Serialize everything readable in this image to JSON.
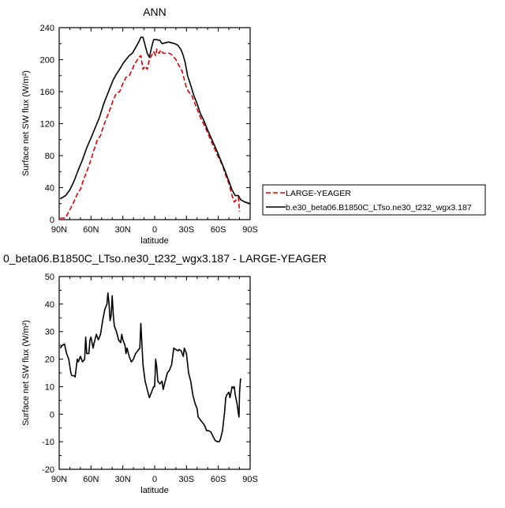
{
  "chart_data": [
    {
      "type": "line",
      "title": "ANN",
      "xlabel": "latitude",
      "ylabel": "Surface net SW flux (W/m²)",
      "xlim": [
        90,
        -90
      ],
      "ylim": [
        0,
        240
      ],
      "x_ticks": [
        90,
        60,
        30,
        0,
        -30,
        -60,
        -90
      ],
      "x_tick_labels": [
        "90N",
        "60N",
        "30N",
        "0",
        "30S",
        "60S",
        "90S"
      ],
      "y_ticks": [
        0,
        40,
        80,
        120,
        160,
        200,
        240
      ],
      "y_tick_labels": [
        "0",
        "40",
        "80",
        "120",
        "160",
        "200",
        "240"
      ],
      "grid": false,
      "legend_position": "outside-right",
      "series": [
        {
          "name": "LARGE-YEAGER",
          "color": "#e00000",
          "dash": "dashed",
          "points": [
            [
              89,
              2
            ],
            [
              84,
              2
            ],
            [
              81,
              10
            ],
            [
              77,
              20
            ],
            [
              73,
              32
            ],
            [
              70,
              38
            ],
            [
              67,
              50
            ],
            [
              64,
              60
            ],
            [
              60,
              75
            ],
            [
              57,
              88
            ],
            [
              54,
              100
            ],
            [
              51,
              105
            ],
            [
              48,
              118
            ],
            [
              45,
              128
            ],
            [
              42,
              138
            ],
            [
              39,
              150
            ],
            [
              36,
              158
            ],
            [
              33,
              160
            ],
            [
              30,
              170
            ],
            [
              27,
              178
            ],
            [
              24,
              180
            ],
            [
              21,
              188
            ],
            [
              19,
              195
            ],
            [
              17,
              198
            ],
            [
              15,
              203
            ],
            [
              13,
              205
            ],
            [
              11,
              188
            ],
            [
              9,
              192
            ],
            [
              7,
              188
            ],
            [
              5,
              200
            ],
            [
              3,
              205
            ],
            [
              1,
              210
            ],
            [
              -1,
              205
            ],
            [
              -2,
              213
            ],
            [
              -4,
              208
            ],
            [
              -6,
              212
            ],
            [
              -8,
              208
            ],
            [
              -11,
              208
            ],
            [
              -14,
              208
            ],
            [
              -17,
              205
            ],
            [
              -20,
              200
            ],
            [
              -22,
              195
            ],
            [
              -24,
              190
            ],
            [
              -26,
              185
            ],
            [
              -28,
              175
            ],
            [
              -30,
              165
            ],
            [
              -32,
              160
            ],
            [
              -35,
              155
            ],
            [
              -38,
              145
            ],
            [
              -41,
              135
            ],
            [
              -44,
              125
            ],
            [
              -48,
              115
            ],
            [
              -52,
              102
            ],
            [
              -56,
              90
            ],
            [
              -60,
              78
            ],
            [
              -64,
              68
            ],
            [
              -67,
              55
            ],
            [
              -70,
              45
            ],
            [
              -73,
              30
            ],
            [
              -75,
              22
            ],
            [
              -77,
              25
            ],
            [
              -79,
              28
            ],
            [
              -80,
              10
            ]
          ]
        },
        {
          "name": "b.e30_beta06.B1850C_LTso.ne30_t232_wgx3.187",
          "color": "#000000",
          "dash": "solid",
          "points": [
            [
              89,
              26
            ],
            [
              84,
              30
            ],
            [
              80,
              37
            ],
            [
              76,
              48
            ],
            [
              72,
              62
            ],
            [
              68,
              75
            ],
            [
              64,
              90
            ],
            [
              60,
              102
            ],
            [
              56,
              115
            ],
            [
              52,
              128
            ],
            [
              48,
              145
            ],
            [
              45,
              155
            ],
            [
              42,
              165
            ],
            [
              39,
              175
            ],
            [
              36,
              182
            ],
            [
              33,
              188
            ],
            [
              30,
              195
            ],
            [
              27,
              200
            ],
            [
              24,
              205
            ],
            [
              21,
              208
            ],
            [
              18,
              215
            ],
            [
              15,
              222
            ],
            [
              13,
              228
            ],
            [
              11,
              228
            ],
            [
              9,
              218
            ],
            [
              7,
              208
            ],
            [
              5,
              203
            ],
            [
              3,
              215
            ],
            [
              1,
              225
            ],
            [
              -2,
              225
            ],
            [
              -5,
              224
            ],
            [
              -7,
              220
            ],
            [
              -10,
              221
            ],
            [
              -13,
              222
            ],
            [
              -16,
              221
            ],
            [
              -19,
              220
            ],
            [
              -22,
              218
            ],
            [
              -25,
              212
            ],
            [
              -27,
              205
            ],
            [
              -29,
              195
            ],
            [
              -31,
              180
            ],
            [
              -34,
              168
            ],
            [
              -37,
              155
            ],
            [
              -40,
              145
            ],
            [
              -43,
              133
            ],
            [
              -46,
              125
            ],
            [
              -50,
              112
            ],
            [
              -54,
              100
            ],
            [
              -58,
              88
            ],
            [
              -62,
              75
            ],
            [
              -66,
              62
            ],
            [
              -70,
              48
            ],
            [
              -73,
              37
            ],
            [
              -76,
              30
            ],
            [
              -79,
              30
            ],
            [
              -81,
              25
            ],
            [
              -85,
              22
            ],
            [
              -90,
              20
            ]
          ]
        }
      ]
    },
    {
      "type": "line",
      "title": "0_beta06.B1850C_LTso.ne30_t232_wgx3.187 - LARGE-YEAGER",
      "xlabel": "latitude",
      "ylabel": "Surface net SW flux (W/m²)",
      "xlim": [
        90,
        -90
      ],
      "ylim": [
        -20,
        50
      ],
      "x_ticks": [
        90,
        60,
        30,
        0,
        -30,
        -60,
        -90
      ],
      "x_tick_labels": [
        "90N",
        "60N",
        "30N",
        "0",
        "30S",
        "60S",
        "90S"
      ],
      "y_ticks": [
        -20,
        -10,
        0,
        10,
        20,
        30,
        40,
        50
      ],
      "y_tick_labels": [
        "-20",
        "-10",
        "0",
        "10",
        "20",
        "30",
        "40",
        "50"
      ],
      "grid": false,
      "series": [
        {
          "color": "#000000",
          "dash": "solid",
          "points": [
            [
              89,
              24
            ],
            [
              87,
              25
            ],
            [
              85,
              25.5
            ],
            [
              83,
              22
            ],
            [
              81,
              20
            ],
            [
              79,
              15
            ],
            [
              78,
              14
            ],
            [
              76,
              14
            ],
            [
              75,
              13.5
            ],
            [
              73,
              20
            ],
            [
              72,
              19
            ],
            [
              70,
              21
            ],
            [
              68,
              19
            ],
            [
              66,
              20
            ],
            [
              65,
              28
            ],
            [
              64,
              22
            ],
            [
              62,
              22
            ],
            [
              61,
              27
            ],
            [
              60,
              28
            ],
            [
              58,
              24
            ],
            [
              57,
              26
            ],
            [
              55,
              29
            ],
            [
              53,
              27
            ],
            [
              51,
              29
            ],
            [
              49,
              34
            ],
            [
              47,
              38
            ],
            [
              45,
              40
            ],
            [
              44,
              44
            ],
            [
              43,
              40
            ],
            [
              42,
              34
            ],
            [
              41,
              36
            ],
            [
              40,
              43
            ],
            [
              39,
              36
            ],
            [
              38,
              32
            ],
            [
              36,
              30
            ],
            [
              34,
              27
            ],
            [
              32,
              26
            ],
            [
              31,
              29
            ],
            [
              30,
              27
            ],
            [
              28,
              25
            ],
            [
              27,
              22
            ],
            [
              26,
              24
            ],
            [
              24,
              21
            ],
            [
              22,
              19
            ],
            [
              20,
              20
            ],
            [
              18,
              22
            ],
            [
              16,
              23
            ],
            [
              14,
              24
            ],
            [
              13,
              33
            ],
            [
              11,
              18
            ],
            [
              9,
              12
            ],
            [
              7,
              9
            ],
            [
              5,
              6
            ],
            [
              3,
              8
            ],
            [
              1,
              10
            ],
            [
              0,
              10
            ],
            [
              -1,
              20
            ],
            [
              -2,
              17
            ],
            [
              -3,
              12
            ],
            [
              -5,
              11
            ],
            [
              -7,
              12
            ],
            [
              -8,
              9
            ],
            [
              -10,
              12
            ],
            [
              -12,
              15
            ],
            [
              -14,
              16
            ],
            [
              -16,
              18
            ],
            [
              -18,
              24
            ],
            [
              -20,
              23.5
            ],
            [
              -22,
              23
            ],
            [
              -23,
              23.5
            ],
            [
              -25,
              23
            ],
            [
              -27,
              21
            ],
            [
              -28,
              24
            ],
            [
              -30,
              22
            ],
            [
              -32,
              15
            ],
            [
              -34,
              12
            ],
            [
              -36,
              7
            ],
            [
              -38,
              4
            ],
            [
              -40,
              2
            ],
            [
              -41,
              -1
            ],
            [
              -43,
              -2
            ],
            [
              -45,
              -3
            ],
            [
              -47,
              -4
            ],
            [
              -49,
              -6
            ],
            [
              -51,
              -6
            ],
            [
              -53,
              -6.5
            ],
            [
              -55,
              -8
            ],
            [
              -57,
              -9.5
            ],
            [
              -59,
              -10
            ],
            [
              -61,
              -10
            ],
            [
              -62,
              -9
            ],
            [
              -64,
              -6
            ],
            [
              -66,
              1
            ],
            [
              -67,
              6
            ],
            [
              -68,
              7
            ],
            [
              -70,
              8
            ],
            [
              -71,
              6
            ],
            [
              -72,
              8
            ],
            [
              -73,
              10
            ],
            [
              -74,
              9.5
            ],
            [
              -75,
              10
            ],
            [
              -76,
              7
            ],
            [
              -78,
              3
            ],
            [
              -79,
              0
            ],
            [
              -79.5,
              -1
            ],
            [
              -80,
              8
            ],
            [
              -81,
              13
            ]
          ]
        }
      ]
    }
  ]
}
